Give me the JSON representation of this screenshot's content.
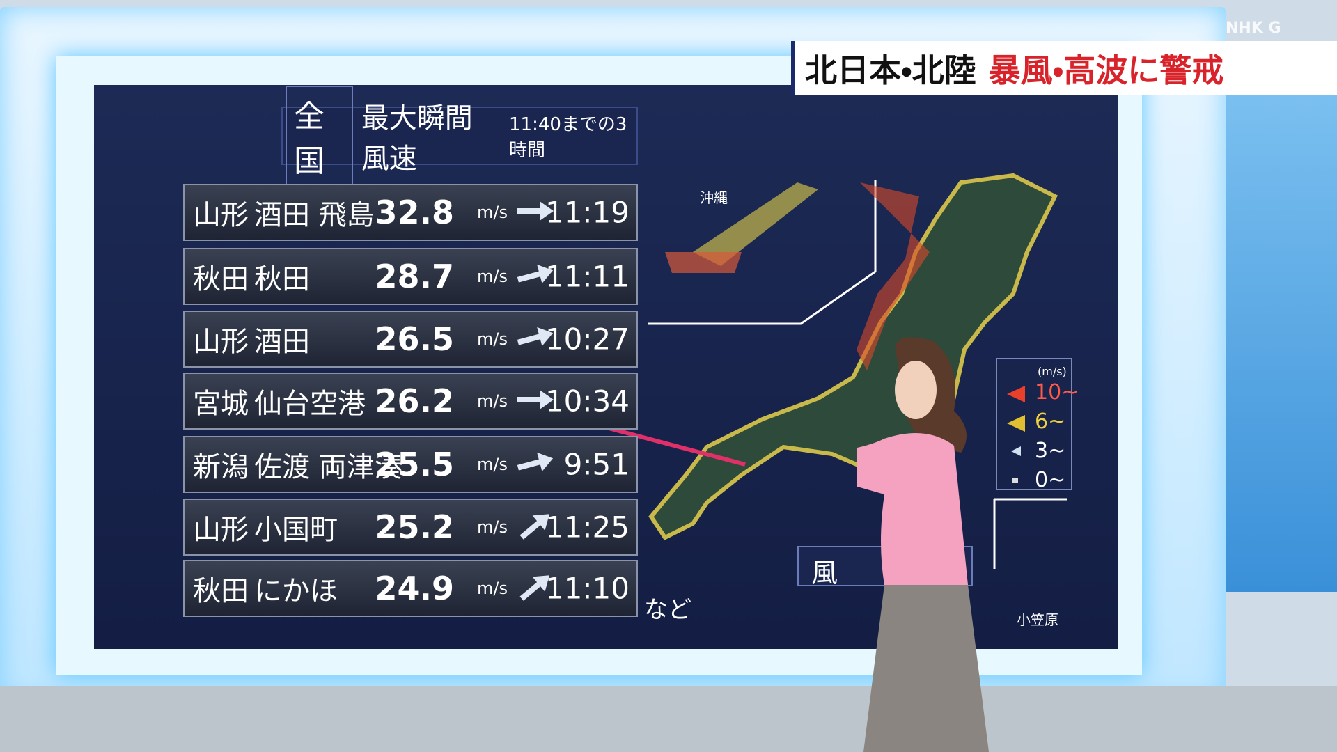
{
  "logo": "NHK G",
  "caption": {
    "region": "北日本・北陸",
    "alert": "暴風・高波に警戒"
  },
  "board": {
    "scope": "全国",
    "title": "最大瞬間風速",
    "period": "11:40までの3時間",
    "unit": "m/s",
    "rows": [
      {
        "pref": "山形",
        "place": "酒田 飛島",
        "speed": "32.8",
        "time": "11:19"
      },
      {
        "pref": "秋田",
        "place": "秋田",
        "speed": "28.7",
        "time": "11:11"
      },
      {
        "pref": "山形",
        "place": "酒田",
        "speed": "26.5",
        "time": "10:27"
      },
      {
        "pref": "宮城",
        "place": "仙台空港",
        "speed": "26.2",
        "time": "10:34"
      },
      {
        "pref": "新潟",
        "place": "佐渡 両津湊",
        "speed": "25.5",
        "time": "9:51"
      },
      {
        "pref": "山形",
        "place": "小国町",
        "speed": "25.2",
        "time": "11:25"
      },
      {
        "pref": "秋田",
        "place": "にかほ",
        "speed": "24.9",
        "time": "11:10"
      }
    ],
    "more": "など"
  },
  "map": {
    "inset_okinawa": "沖縄",
    "inset_ogasawara": "小笠原",
    "label": "風",
    "legend": {
      "unit": "(m/s)",
      "items": [
        "10~",
        "6~",
        "3~",
        "0~"
      ]
    }
  }
}
